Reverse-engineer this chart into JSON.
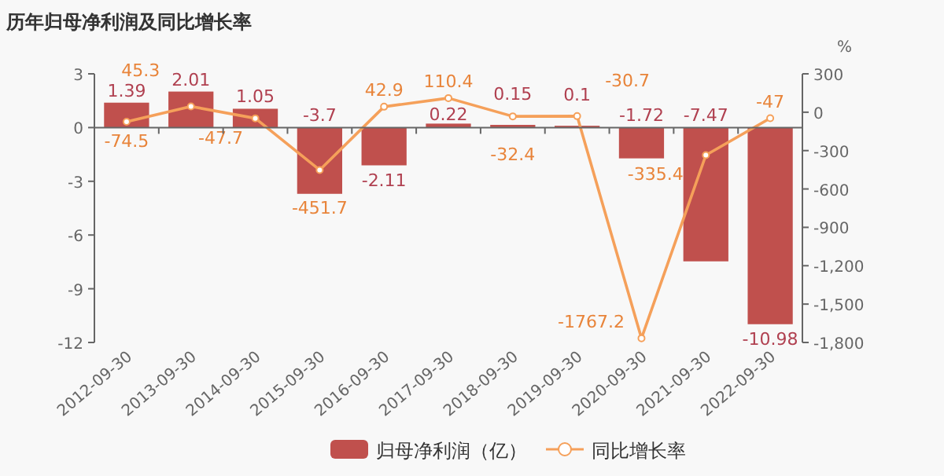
{
  "chart_data": {
    "type": "bar",
    "title": "历年归母净利润及同比增长率",
    "y2label": "%",
    "categories": [
      "2012-09-30",
      "2013-09-30",
      "2014-09-30",
      "2015-09-30",
      "2016-09-30",
      "2017-09-30",
      "2018-09-30",
      "2019-09-30",
      "2020-09-30",
      "2021-09-30",
      "2022-09-30"
    ],
    "series": [
      {
        "name": "归母净利润（亿）",
        "color": "#c0504d",
        "values": [
          1.39,
          2.01,
          1.05,
          -3.7,
          -2.11,
          0.22,
          0.15,
          0.1,
          -1.72,
          -7.47,
          -10.98
        ]
      },
      {
        "name": "同比增长率",
        "type": "line",
        "axis": "y2",
        "color": "#f5a05a",
        "marker": "circle",
        "values": [
          -74.5,
          45.3,
          -47.7,
          -451.7,
          42.9,
          110.4,
          -32.4,
          -30.7,
          -1767.2,
          -335.4,
          -47
        ]
      }
    ],
    "ylim": [
      -12,
      3
    ],
    "yticks": [
      -12,
      -9,
      -6,
      -3,
      0,
      3
    ],
    "y2lim": [
      -1800,
      300
    ],
    "y2ticks": [
      {
        "value": -1800,
        "label": "-1,800"
      },
      {
        "value": -1500,
        "label": "-1,500"
      },
      {
        "value": -1200,
        "label": "-1,200"
      },
      -900,
      -600,
      -300,
      0,
      300
    ],
    "data_labels": true,
    "legend": "bottom"
  }
}
